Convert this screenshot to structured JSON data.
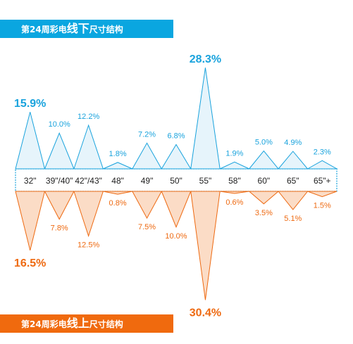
{
  "headers": {
    "top": {
      "prefix": "第24周彩电",
      "emphasis": "线下",
      "suffix": "尺寸结构"
    },
    "bottom": {
      "prefix": "第24周彩电",
      "emphasis": "线上",
      "suffix": "尺寸结构"
    }
  },
  "colors": {
    "offline": "#1aa3dd",
    "offline_fill": "#e6f4fb",
    "online": "#ee6a12",
    "online_fill": "#fbdcc6",
    "top_banner": "#0aa6e0",
    "bottom_banner": "#f06a0e"
  },
  "chart_data": {
    "type": "area",
    "categories": [
      "32\"",
      "39\"/40\"",
      "42\"/43\"",
      "48\"",
      "49\"",
      "50\"",
      "55\"",
      "58\"",
      "60\"",
      "65\"",
      "65\"+"
    ],
    "series": [
      {
        "values": [
          15.9,
          10.0,
          12.2,
          1.8,
          7.2,
          6.8,
          28.3,
          1.9,
          5.0,
          4.9,
          2.3
        ],
        "labels": [
          "15.9%",
          "10.0%",
          "12.2%",
          "1.8%",
          "7.2%",
          "6.8%",
          "28.3%",
          "1.9%",
          "5.0%",
          "4.9%",
          "2.3%"
        ]
      },
      {
        "values": [
          16.5,
          7.8,
          12.5,
          0.8,
          7.5,
          10.0,
          30.4,
          0.6,
          3.5,
          5.1,
          1.5
        ],
        "labels": [
          "16.5%",
          "7.8%",
          "12.5%",
          "0.8%",
          "7.5%",
          "10.0%",
          "30.4%",
          "0.6%",
          "3.5%",
          "5.1%",
          "1.5%"
        ]
      }
    ]
  }
}
